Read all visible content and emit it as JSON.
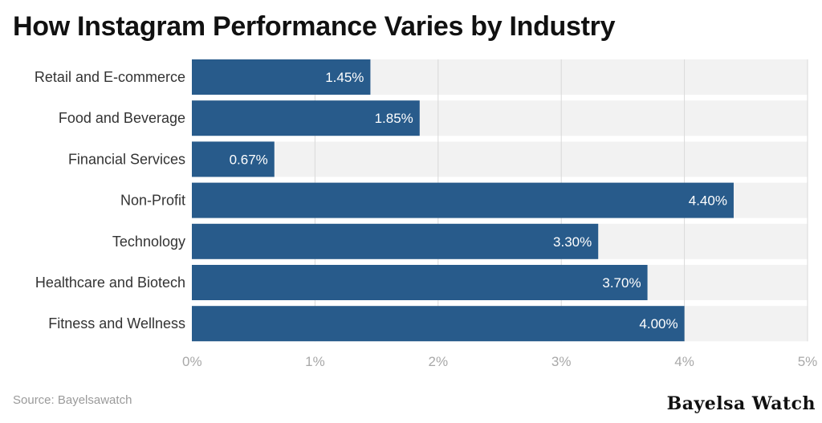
{
  "chart_data": {
    "type": "bar",
    "orientation": "horizontal",
    "title": "How Instagram Performance Varies by Industry",
    "categories": [
      "Retail and E-commerce",
      "Food and Beverage",
      "Financial Services",
      "Non-Profit",
      "Technology",
      "Healthcare and Biotech",
      "Fitness and Wellness"
    ],
    "values": [
      1.45,
      1.85,
      0.67,
      4.4,
      3.3,
      3.7,
      4.0
    ],
    "value_labels": [
      "1.45%",
      "1.85%",
      "0.67%",
      "4.40%",
      "3.30%",
      "3.70%",
      "4.00%"
    ],
    "xlim": [
      0,
      5
    ],
    "x_ticks": [
      0,
      1,
      2,
      3,
      4,
      5
    ],
    "x_tick_labels": [
      "0%",
      "1%",
      "2%",
      "3%",
      "4%",
      "5%"
    ],
    "grid": true,
    "legend": "none",
    "colors": {
      "bar": "#285b8b",
      "track": "#f2f2f2",
      "grid": "#d9d9d9"
    }
  },
  "footer": {
    "source": "Source: Bayelsawatch",
    "brand": "Bayelsa Watch"
  }
}
